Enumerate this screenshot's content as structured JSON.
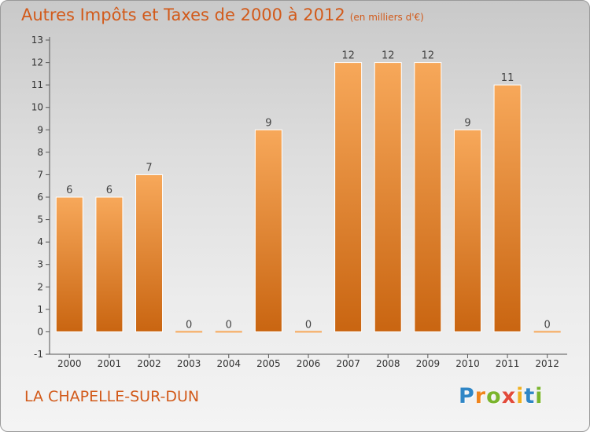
{
  "header": {
    "title": "Autres Impôts et Taxes de 2000 à 2012",
    "subtitle": "(en milliers d'€)"
  },
  "footer": {
    "commune": "LA CHAPELLE-SUR-DUN",
    "logo": {
      "letters": [
        "P",
        "r",
        "o",
        "x",
        "i",
        "t",
        "i"
      ],
      "colors": [
        "#2f86c6",
        "#f0841c",
        "#7ab42c",
        "#e24a3a",
        "#f0b020",
        "#2f86c6",
        "#7ab42c"
      ]
    }
  },
  "chart_data": {
    "type": "bar",
    "categories": [
      "2000",
      "2001",
      "2002",
      "2003",
      "2004",
      "2005",
      "2006",
      "2007",
      "2008",
      "2009",
      "2010",
      "2011",
      "2012"
    ],
    "values": [
      6,
      6,
      7,
      0,
      0,
      9,
      0,
      12,
      12,
      12,
      9,
      11,
      0
    ],
    "data_labels": [
      "6",
      "6",
      "7",
      "0",
      "0",
      "9",
      "0",
      "12",
      "12",
      "12",
      "9",
      "11",
      "0"
    ],
    "ylim": [
      -1,
      13
    ],
    "yticks": [
      -1,
      0,
      1,
      2,
      3,
      4,
      5,
      6,
      7,
      8,
      9,
      10,
      11,
      12,
      13
    ],
    "ytick_labels": [
      "-1",
      "0",
      "1",
      "2",
      "3",
      "4",
      "5",
      "6",
      "7",
      "8",
      "9",
      "10",
      "11",
      "12",
      "13"
    ],
    "grid": false,
    "bar_color_top": "#f7a85a",
    "bar_color_bottom": "#c96511",
    "axis_color": "#555555"
  }
}
